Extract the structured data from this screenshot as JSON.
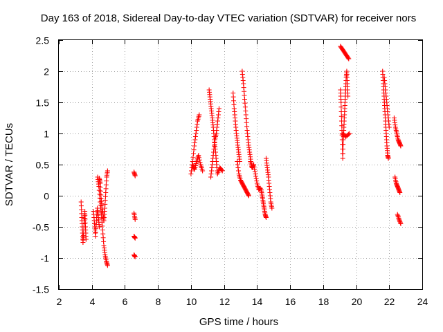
{
  "chart_data": {
    "type": "scatter",
    "title": "Day 163 of 2018, Sidereal Day-to-day VTEC variation (SDTVAR) for receiver nors",
    "xlabel": "GPS time / hours",
    "ylabel": "SDTVAR / TECUs",
    "xlim": [
      2,
      24
    ],
    "ylim": [
      -1.5,
      2.5
    ],
    "xticks": [
      "2",
      "4",
      "6",
      "8",
      "10",
      "12",
      "14",
      "16",
      "18",
      "20",
      "22",
      "24"
    ],
    "yticks": [
      "-1.5",
      "-1",
      "-0.5",
      "0",
      "0.5",
      "1",
      "1.5",
      "2",
      "2.5"
    ],
    "xtick_values": [
      2,
      4,
      6,
      8,
      10,
      12,
      14,
      16,
      18,
      20,
      22,
      24
    ],
    "ytick_values": [
      -1.5,
      -1,
      -0.5,
      0,
      0.5,
      1,
      1.5,
      2,
      2.5
    ],
    "grid": true,
    "marker": "+",
    "series_color": "#ff0000",
    "series": [
      {
        "name": "SDTVAR",
        "tracks": [
          {
            "x0": 3.35,
            "x1": 3.65,
            "y": [
              -0.1,
              -0.35,
              -0.55,
              -0.75,
              -0.6,
              -0.4,
              -0.25,
              -0.5,
              -0.7
            ]
          },
          {
            "x0": 4.1,
            "x1": 4.45,
            "y": [
              -0.25,
              -0.45,
              -0.65,
              -0.4,
              -0.2,
              -0.35,
              -0.5
            ]
          },
          {
            "x0": 4.35,
            "x1": 4.95,
            "y": [
              0.3,
              0.15,
              -0.1,
              -0.3,
              -0.55,
              -0.8,
              -0.95,
              -1.05,
              -1.12
            ]
          },
          {
            "x0": 4.45,
            "x1": 4.95,
            "y": [
              0.28,
              0.2,
              -0.05,
              -0.2,
              -0.3,
              -0.4,
              -0.2,
              0.05,
              0.3,
              0.4
            ]
          },
          {
            "x0": 6.55,
            "x1": 6.62,
            "y": [
              0.38,
              0.32
            ]
          },
          {
            "x0": 6.55,
            "x1": 6.62,
            "y": [
              -0.28,
              -0.38
            ]
          },
          {
            "x0": 6.55,
            "x1": 6.62,
            "y": [
              -0.65,
              -0.68
            ]
          },
          {
            "x0": 6.55,
            "x1": 6.62,
            "y": [
              -0.95,
              -0.98
            ]
          },
          {
            "x0": 10.0,
            "x1": 10.5,
            "y": [
              0.35,
              0.55,
              0.8,
              1.0,
              1.2,
              1.3
            ]
          },
          {
            "x0": 10.1,
            "x1": 10.7,
            "y": [
              0.5,
              0.42,
              0.55,
              0.65,
              0.5,
              0.4
            ]
          },
          {
            "x0": 11.1,
            "x1": 11.6,
            "y": [
              1.7,
              1.55,
              1.4,
              1.25,
              1.1,
              0.9,
              0.75,
              0.55,
              0.35
            ]
          },
          {
            "x0": 11.2,
            "x1": 11.7,
            "y": [
              0.3,
              0.5,
              0.7,
              0.9,
              1.0,
              1.2,
              1.4
            ]
          },
          {
            "x0": 11.6,
            "x1": 11.9,
            "y": [
              0.35,
              0.45,
              0.4
            ]
          },
          {
            "x0": 12.55,
            "x1": 12.95,
            "y": [
              1.65,
              1.4,
              1.2,
              1.0,
              0.85,
              0.7,
              0.55
            ]
          },
          {
            "x0": 12.8,
            "x1": 13.5,
            "y": [
              0.55,
              0.35,
              0.25,
              0.2,
              0.15,
              0.1,
              0.05,
              0.0
            ]
          },
          {
            "x0": 13.1,
            "x1": 13.7,
            "y": [
              2.0,
              1.8,
              1.55,
              1.3,
              1.05,
              0.85,
              0.7,
              0.55,
              0.45
            ]
          },
          {
            "x0": 13.6,
            "x1": 14.2,
            "y": [
              0.55,
              0.45,
              0.5,
              0.35,
              0.2,
              0.1,
              0.12
            ]
          },
          {
            "x0": 14.25,
            "x1": 14.55,
            "y": [
              0.1,
              0.0,
              -0.1,
              -0.2,
              -0.3,
              -0.35
            ]
          },
          {
            "x0": 14.55,
            "x1": 14.9,
            "y": [
              0.6,
              0.45,
              0.3,
              0.1,
              -0.1,
              -0.2
            ]
          },
          {
            "x0": 19.05,
            "x1": 19.55,
            "y": [
              2.4,
              2.35,
              2.3,
              2.25,
              2.2
            ]
          },
          {
            "x0": 19.05,
            "x1": 19.5,
            "y": [
              1.7,
              1.5,
              1.2,
              0.9,
              0.6,
              0.9,
              1.1,
              1.3,
              1.5,
              1.7,
              1.9,
              2.0,
              1.8,
              1.6
            ]
          },
          {
            "x0": 19.15,
            "x1": 19.6,
            "y": [
              1.0,
              0.95,
              1.0
            ]
          },
          {
            "x0": 21.6,
            "x1": 21.95,
            "y": [
              2.0,
              1.8,
              1.6,
              1.4,
              1.2,
              1.0,
              0.8,
              0.65,
              0.6
            ]
          },
          {
            "x0": 21.7,
            "x1": 22.0,
            "y": [
              1.9,
              1.7,
              1.5,
              1.3,
              1.1
            ]
          },
          {
            "x0": 22.3,
            "x1": 22.7,
            "y": [
              1.25,
              1.1,
              1.0,
              0.9,
              0.85,
              0.8
            ]
          },
          {
            "x0": 22.35,
            "x1": 22.65,
            "y": [
              0.3,
              0.2,
              0.15,
              0.1,
              0.05
            ]
          },
          {
            "x0": 22.5,
            "x1": 22.7,
            "y": [
              -0.3,
              -0.38,
              -0.45
            ]
          }
        ]
      }
    ]
  }
}
